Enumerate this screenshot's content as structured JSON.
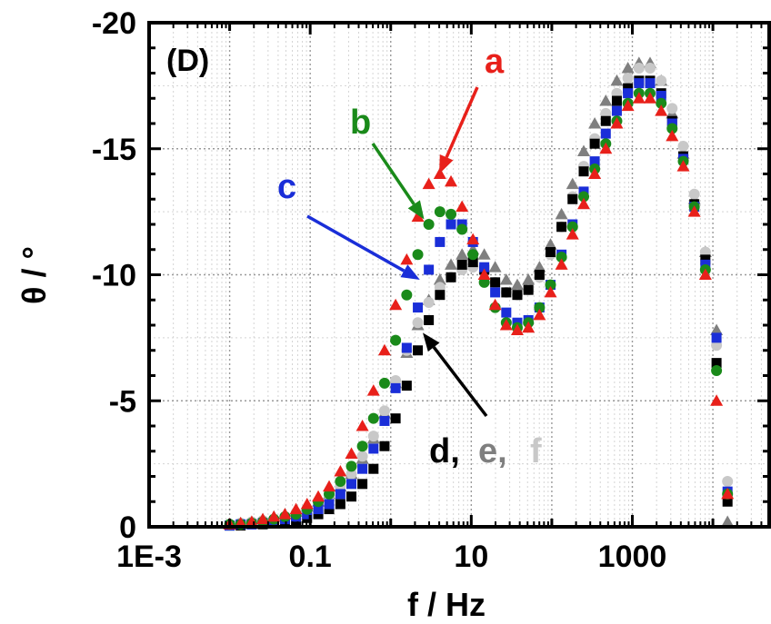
{
  "chart_data": {
    "type": "scatter",
    "panel_label": "(D)",
    "xlabel": "f / Hz",
    "ylabel": "θ / °",
    "xscale": "log",
    "xlim": [
      0.001,
      50000
    ],
    "ylim": [
      0,
      -20
    ],
    "xticks": [
      0.001,
      0.1,
      10,
      1000
    ],
    "xtick_labels": [
      "1E-3",
      "0.1",
      "10",
      "1000"
    ],
    "yticks": [
      0,
      -5,
      -10,
      -15,
      -20
    ],
    "ytick_labels": [
      "0",
      "-5",
      "-10",
      "-15",
      "-20"
    ],
    "grid": true,
    "annotations": [
      {
        "label": "a",
        "color": "#e8201a",
        "points_to": [
          4.0,
          -14.0
        ]
      },
      {
        "label": "b",
        "color": "#1a8a1a",
        "points_to": [
          2.6,
          -12.2
        ]
      },
      {
        "label": "c",
        "color": "#1a2ed8",
        "points_to": [
          2.3,
          -9.8
        ]
      },
      {
        "label": "d,",
        "color": "#000000",
        "points_to": [
          2.5,
          -7.7
        ]
      },
      {
        "label": "e,",
        "color": "#7f7f7f"
      },
      {
        "label": "f",
        "color": "#c8c8c8"
      }
    ],
    "series": [
      {
        "name": "a",
        "color": "#e8201a",
        "marker": "triangle",
        "x": [
          0.01,
          0.0137,
          0.0188,
          0.0258,
          0.0354,
          0.0486,
          0.0667,
          0.0915,
          0.126,
          0.172,
          0.237,
          0.325,
          0.445,
          0.611,
          0.838,
          1.15,
          1.58,
          2.17,
          2.97,
          4.08,
          5.6,
          7.68,
          10.5,
          14.5,
          19.8,
          27.2,
          37.3,
          51.2,
          70.3,
          96.4,
          132,
          181,
          249,
          341,
          468,
          642,
          881,
          1210,
          1660,
          2280,
          3120,
          4290,
          5880,
          8070,
          11100,
          15200
        ],
        "y": [
          -0.1,
          -0.15,
          -0.2,
          -0.3,
          -0.4,
          -0.5,
          -0.7,
          -0.9,
          -1.2,
          -1.6,
          -2.2,
          -2.9,
          -4.0,
          -5.4,
          -7.0,
          -8.8,
          -10.6,
          -12.3,
          -13.6,
          -14.0,
          -13.7,
          -12.7,
          -11.4,
          -10.0,
          -8.8,
          -8.0,
          -7.8,
          -7.9,
          -8.4,
          -9.3,
          -10.4,
          -11.6,
          -12.8,
          -14.0,
          -15.0,
          -16.0,
          -16.7,
          -17.0,
          -17.0,
          -16.5,
          -15.5,
          -14.3,
          -12.5,
          -10.0,
          -5.0,
          -1.3
        ]
      },
      {
        "name": "b",
        "color": "#1a8a1a",
        "marker": "circle",
        "x": [
          0.01,
          0.0137,
          0.0188,
          0.0258,
          0.0354,
          0.0486,
          0.0667,
          0.0915,
          0.126,
          0.172,
          0.237,
          0.325,
          0.445,
          0.611,
          0.838,
          1.15,
          1.58,
          2.17,
          2.97,
          4.08,
          5.6,
          7.68,
          10.5,
          14.5,
          19.8,
          27.2,
          37.3,
          51.2,
          70.3,
          96.4,
          132,
          181,
          249,
          341,
          468,
          642,
          881,
          1210,
          1660,
          2280,
          3120,
          4290,
          5880,
          8070,
          11100,
          15200
        ],
        "y": [
          -0.1,
          -0.1,
          -0.15,
          -0.2,
          -0.3,
          -0.4,
          -0.5,
          -0.7,
          -1.0,
          -1.3,
          -1.8,
          -2.4,
          -3.2,
          -4.3,
          -5.7,
          -7.4,
          -9.2,
          -10.8,
          -12.0,
          -12.5,
          -12.4,
          -11.8,
          -10.8,
          -9.7,
          -8.7,
          -8.1,
          -7.9,
          -8.1,
          -8.7,
          -9.6,
          -10.7,
          -11.9,
          -13.1,
          -14.2,
          -15.2,
          -16.1,
          -16.8,
          -17.2,
          -17.2,
          -16.8,
          -15.8,
          -14.5,
          -12.7,
          -10.2,
          -6.2,
          -1.3
        ]
      },
      {
        "name": "c",
        "color": "#1a2ed8",
        "marker": "square",
        "x": [
          0.01,
          0.0137,
          0.0188,
          0.0258,
          0.0354,
          0.0486,
          0.0667,
          0.0915,
          0.126,
          0.172,
          0.237,
          0.325,
          0.445,
          0.611,
          0.838,
          1.15,
          1.58,
          2.17,
          2.97,
          4.08,
          5.6,
          7.68,
          10.5,
          14.5,
          19.8,
          27.2,
          37.3,
          51.2,
          70.3,
          96.4,
          132,
          181,
          249,
          341,
          468,
          642,
          881,
          1210,
          1660,
          2280,
          3120,
          4290,
          5880,
          8070,
          11100,
          15200
        ],
        "y": [
          -0.05,
          -0.1,
          -0.1,
          -0.15,
          -0.2,
          -0.3,
          -0.4,
          -0.5,
          -0.7,
          -0.9,
          -1.3,
          -1.7,
          -2.3,
          -3.1,
          -4.2,
          -5.5,
          -7.1,
          -8.7,
          -10.2,
          -11.3,
          -12.0,
          -12.0,
          -11.3,
          -10.3,
          -9.3,
          -8.5,
          -8.1,
          -8.2,
          -8.7,
          -9.6,
          -10.8,
          -12.0,
          -13.3,
          -14.5,
          -15.6,
          -16.5,
          -17.2,
          -17.6,
          -17.6,
          -17.1,
          -16.0,
          -14.6,
          -12.7,
          -10.4,
          -7.5,
          -1.4
        ]
      },
      {
        "name": "d",
        "color": "#000000",
        "marker": "square",
        "x": [
          0.01,
          0.0137,
          0.0188,
          0.0258,
          0.0354,
          0.0486,
          0.0667,
          0.0915,
          0.126,
          0.172,
          0.237,
          0.325,
          0.445,
          0.611,
          0.838,
          1.15,
          1.58,
          2.17,
          2.97,
          4.08,
          5.6,
          7.68,
          10.5,
          14.5,
          19.8,
          27.2,
          37.3,
          51.2,
          70.3,
          96.4,
          132,
          181,
          249,
          341,
          468,
          642,
          881,
          1210,
          1660,
          2280,
          3120,
          4290,
          5880,
          8070,
          11100,
          15200
        ],
        "y": [
          -0.05,
          -0.05,
          -0.1,
          -0.1,
          -0.15,
          -0.2,
          -0.25,
          -0.35,
          -0.5,
          -0.7,
          -0.9,
          -1.2,
          -1.7,
          -2.3,
          -3.2,
          -4.3,
          -5.6,
          -7.0,
          -8.2,
          -9.2,
          -9.9,
          -10.4,
          -10.5,
          -10.2,
          -9.7,
          -9.3,
          -9.2,
          -9.4,
          -10.0,
          -10.9,
          -11.9,
          -13.0,
          -14.1,
          -15.2,
          -16.1,
          -16.9,
          -17.4,
          -17.7,
          -17.7,
          -17.2,
          -16.1,
          -14.7,
          -12.8,
          -10.6,
          -6.5,
          -1.0
        ]
      },
      {
        "name": "e",
        "color": "#7f7f7f",
        "marker": "triangle",
        "x": [
          0.01,
          0.0137,
          0.0188,
          0.0258,
          0.0354,
          0.0486,
          0.0667,
          0.0915,
          0.126,
          0.172,
          0.237,
          0.325,
          0.445,
          0.611,
          0.838,
          1.15,
          1.58,
          2.17,
          2.97,
          4.08,
          5.6,
          7.68,
          10.5,
          14.5,
          19.8,
          27.2,
          37.3,
          51.2,
          70.3,
          96.4,
          132,
          181,
          249,
          341,
          468,
          642,
          881,
          1210,
          1660,
          2280,
          3120,
          4290,
          5880,
          8070,
          11100,
          15200
        ],
        "y": [
          -0.1,
          -0.15,
          -0.2,
          -0.3,
          -0.4,
          -0.5,
          -0.6,
          -0.8,
          -1.0,
          -1.3,
          -1.6,
          -2.1,
          -2.7,
          -3.5,
          -4.5,
          -5.7,
          -6.9,
          -8.0,
          -9.0,
          -9.8,
          -10.4,
          -10.8,
          -11.0,
          -10.8,
          -10.3,
          -9.8,
          -9.6,
          -9.8,
          -10.3,
          -11.2,
          -12.4,
          -13.6,
          -14.9,
          -16.0,
          -16.9,
          -17.7,
          -18.2,
          -18.4,
          -18.4,
          -17.7,
          -16.4,
          -14.8,
          -13.0,
          -10.9,
          -7.8,
          -0.2
        ]
      },
      {
        "name": "f",
        "color": "#c8c8c8",
        "marker": "circle",
        "x": [
          0.01,
          0.0137,
          0.0188,
          0.0258,
          0.0354,
          0.0486,
          0.0667,
          0.0915,
          0.126,
          0.172,
          0.237,
          0.325,
          0.445,
          0.611,
          0.838,
          1.15,
          1.58,
          2.17,
          2.97,
          4.08,
          5.6,
          7.68,
          10.5,
          14.5,
          19.8,
          27.2,
          37.3,
          51.2,
          70.3,
          96.4,
          132,
          181,
          249,
          341,
          468,
          642,
          881,
          1210,
          1660,
          2280,
          3120,
          4290,
          5880,
          8070,
          11100,
          15200
        ],
        "y": [
          -0.1,
          -0.15,
          -0.2,
          -0.25,
          -0.3,
          -0.4,
          -0.55,
          -0.7,
          -0.95,
          -1.25,
          -1.6,
          -2.1,
          -2.8,
          -3.6,
          -4.6,
          -5.8,
          -7.0,
          -8.1,
          -8.9,
          -9.5,
          -9.9,
          -10.2,
          -10.3,
          -10.1,
          -9.7,
          -9.3,
          -9.2,
          -9.4,
          -9.9,
          -10.8,
          -11.9,
          -13.1,
          -14.3,
          -15.4,
          -16.4,
          -17.2,
          -17.8,
          -18.2,
          -18.2,
          -17.7,
          -16.6,
          -15.1,
          -13.2,
          -10.9,
          -7.2,
          -1.8
        ]
      }
    ]
  }
}
